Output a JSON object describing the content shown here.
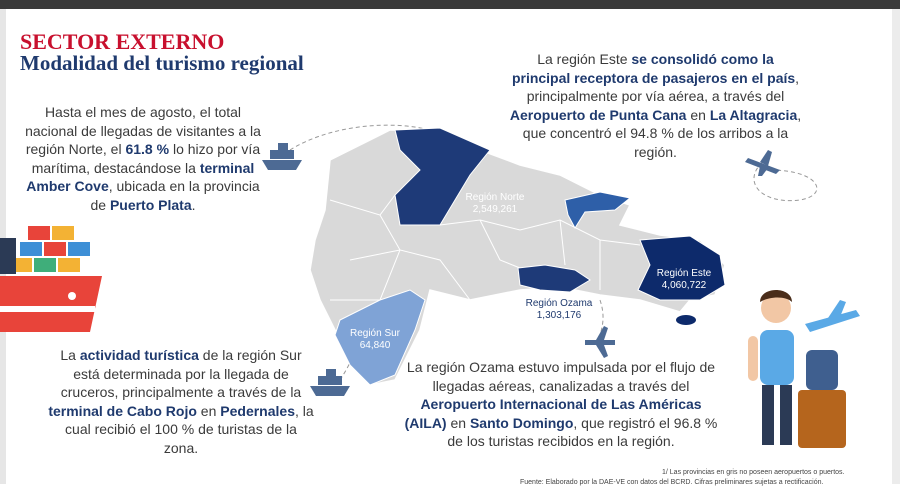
{
  "header": {
    "title": "SECTOR EXTERNO",
    "subtitle": "Modalidad del turismo regional"
  },
  "paragraphs": {
    "norte": [
      {
        "text": "Hasta el mes de agosto, el total nacional de llegadas de visitantes a la región Norte, el "
      },
      {
        "text": "61.8 %",
        "strong": true
      },
      {
        "text": " lo hizo por vía marítima, destacándose la "
      },
      {
        "text": "terminal Amber Cove",
        "strong": true
      },
      {
        "text": ", ubicada en la provincia de "
      },
      {
        "text": "Puerto Plata",
        "strong": true
      },
      {
        "text": "."
      }
    ],
    "este": [
      {
        "text": "La región Este "
      },
      {
        "text": "se consolidó como la principal receptora de pasajeros en el país",
        "strong": true
      },
      {
        "text": ", principalmente por vía aérea, a través del "
      },
      {
        "text": "Aeropuerto de Punta Cana",
        "strong": true
      },
      {
        "text": " en "
      },
      {
        "text": "La Altagracia",
        "strong": true
      },
      {
        "text": ", que concentró el 94.8 % de los arribos a la región."
      }
    ],
    "sur": [
      {
        "text": "La "
      },
      {
        "text": "actividad turística",
        "strong": true
      },
      {
        "text": " de la región Sur está determinada por la llegada de cruceros, principalmente a través de la "
      },
      {
        "text": "terminal de Cabo Rojo",
        "strong": true
      },
      {
        "text": " en "
      },
      {
        "text": "Pedernales",
        "strong": true
      },
      {
        "text": ", la cual recibió el 100 % de turistas de la zona."
      }
    ],
    "ozama": [
      {
        "text": "La región Ozama estuvo impulsada por el flujo de llegadas aéreas, canalizadas a través del "
      },
      {
        "text": "Aeropuerto Internacional de Las Américas (AILA)",
        "strong": true
      },
      {
        "text": " en "
      },
      {
        "text": "Santo Domingo",
        "strong": true
      },
      {
        "text": ", que registró el 96.8 % de los turistas recibidos en la región."
      }
    ]
  },
  "map": {
    "regions": [
      {
        "name": "Región Norte",
        "value": "2,549,261"
      },
      {
        "name": "Región Este",
        "value": "4,060,722"
      },
      {
        "name": "Región Sur",
        "value": "64,840"
      },
      {
        "name": "Región Ozama",
        "value": "1,303,176"
      }
    ]
  },
  "footnotes": [
    "1/ Las provincias en gris no poseen aeropuertos o puertos.",
    "Fuente: Elaborado por la DAE-VE con datos del BCRD. Cifras preliminares sujetas a rectificación."
  ]
}
